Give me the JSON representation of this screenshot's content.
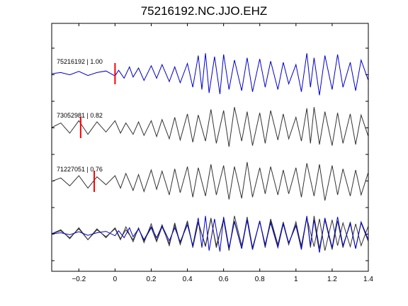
{
  "chart_data": {
    "type": "line",
    "title": "75216192.NC.JJO.EHZ",
    "xlabel": "",
    "ylabel": "",
    "xlim": [
      -0.35,
      1.4
    ],
    "xticks": [
      -0.2,
      0,
      0.2,
      0.4,
      0.6,
      0.8,
      1,
      1.2,
      1.4
    ],
    "xtick_labels": [
      "−0.2",
      "0",
      "0.2",
      "0.4",
      "0.6",
      "0.8",
      "1",
      "1.2",
      "1.4"
    ],
    "grid": false,
    "colors": {
      "primary": "#0000cc",
      "secondary": "#333333",
      "pick": "#ff0000"
    },
    "traces": [
      {
        "label": "75216192 | 1.00",
        "color": "#0000cc",
        "pick_time": 0.0
      },
      {
        "label": "73052981 | 0.82",
        "color": "#333333",
        "pick_time": -0.19
      },
      {
        "label": "71227051 | 0.76",
        "color": "#333333",
        "pick_time": -0.115
      }
    ],
    "series": [
      {
        "trace": 0,
        "x": [
          -0.35,
          -0.3,
          -0.25,
          -0.2,
          -0.15,
          -0.1,
          -0.05,
          0,
          0.02,
          0.05,
          0.08,
          0.1,
          0.13,
          0.16,
          0.2,
          0.23,
          0.26,
          0.3,
          0.33,
          0.36,
          0.4,
          0.43,
          0.46,
          0.48,
          0.5,
          0.52,
          0.55,
          0.58,
          0.6,
          0.63,
          0.66,
          0.7,
          0.73,
          0.76,
          0.8,
          0.83,
          0.86,
          0.9,
          0.93,
          0.96,
          1.0,
          1.03,
          1.06,
          1.08,
          1.1,
          1.13,
          1.16,
          1.2,
          1.23,
          1.26,
          1.3,
          1.33,
          1.36,
          1.4
        ],
        "y": [
          0,
          0.05,
          -0.05,
          0.1,
          -0.08,
          0.05,
          0.12,
          -0.1,
          0.15,
          -0.2,
          0.3,
          -0.15,
          0.25,
          -0.3,
          0.35,
          -0.2,
          0.4,
          -0.35,
          0.3,
          -0.4,
          0.45,
          -0.6,
          0.8,
          -0.7,
          0.9,
          -0.85,
          0.75,
          -0.9,
          0.85,
          -0.7,
          0.6,
          -0.75,
          0.7,
          -0.8,
          0.65,
          -0.6,
          0.55,
          -0.7,
          0.5,
          -0.45,
          0.4,
          -0.8,
          0.9,
          -0.6,
          0.7,
          -0.95,
          0.8,
          -0.7,
          0.85,
          -0.6,
          0.5,
          -0.75,
          0.6,
          -0.3
        ]
      },
      {
        "trace": 1,
        "x": [
          -0.35,
          -0.3,
          -0.25,
          -0.2,
          -0.15,
          -0.1,
          -0.05,
          0,
          0.03,
          0.06,
          0.1,
          0.13,
          0.16,
          0.2,
          0.23,
          0.26,
          0.3,
          0.33,
          0.36,
          0.4,
          0.43,
          0.46,
          0.5,
          0.53,
          0.56,
          0.6,
          0.63,
          0.66,
          0.7,
          0.73,
          0.76,
          0.8,
          0.83,
          0.86,
          0.9,
          0.93,
          0.96,
          1.0,
          1.03,
          1.06,
          1.08,
          1.1,
          1.13,
          1.16,
          1.2,
          1.23,
          1.26,
          1.3,
          1.33,
          1.36,
          1.4
        ],
        "y": [
          0,
          0.2,
          -0.25,
          0.3,
          -0.3,
          0.25,
          -0.2,
          0.3,
          -0.25,
          0.2,
          -0.3,
          0.25,
          -0.35,
          0.3,
          -0.4,
          0.35,
          -0.5,
          0.45,
          -0.55,
          0.6,
          -0.65,
          0.55,
          -0.6,
          0.8,
          -0.7,
          0.75,
          -0.85,
          0.9,
          -0.6,
          0.7,
          -0.8,
          0.65,
          -0.7,
          0.75,
          -0.55,
          0.6,
          -0.5,
          0.45,
          -0.6,
          0.85,
          -0.7,
          0.9,
          -0.75,
          0.7,
          -0.8,
          0.65,
          -0.7,
          0.6,
          -0.75,
          0.55,
          -0.4
        ]
      },
      {
        "trace": 2,
        "x": [
          -0.35,
          -0.3,
          -0.25,
          -0.2,
          -0.15,
          -0.1,
          -0.05,
          0,
          0.03,
          0.06,
          0.1,
          0.13,
          0.16,
          0.2,
          0.23,
          0.26,
          0.3,
          0.33,
          0.36,
          0.4,
          0.43,
          0.46,
          0.5,
          0.53,
          0.56,
          0.6,
          0.63,
          0.66,
          0.7,
          0.73,
          0.76,
          0.8,
          0.83,
          0.86,
          0.9,
          0.93,
          0.96,
          1.0,
          1.03,
          1.06,
          1.1,
          1.13,
          1.16,
          1.2,
          1.23,
          1.26,
          1.3,
          1.33,
          1.36,
          1.4
        ],
        "y": [
          0,
          0.15,
          -0.2,
          0.25,
          -0.3,
          0.2,
          -0.15,
          0.25,
          -0.3,
          0.35,
          -0.4,
          0.3,
          -0.45,
          0.5,
          -0.35,
          0.45,
          -0.6,
          0.55,
          -0.5,
          0.65,
          -0.7,
          0.6,
          -0.65,
          0.75,
          -0.6,
          0.7,
          -0.8,
          0.65,
          -0.75,
          0.85,
          -0.7,
          0.6,
          -0.55,
          0.65,
          -0.6,
          0.5,
          -0.55,
          0.6,
          -0.7,
          0.8,
          -0.65,
          0.75,
          -0.85,
          0.7,
          -0.6,
          0.55,
          -0.65,
          0.5,
          -0.6,
          0.4
        ]
      }
    ]
  }
}
